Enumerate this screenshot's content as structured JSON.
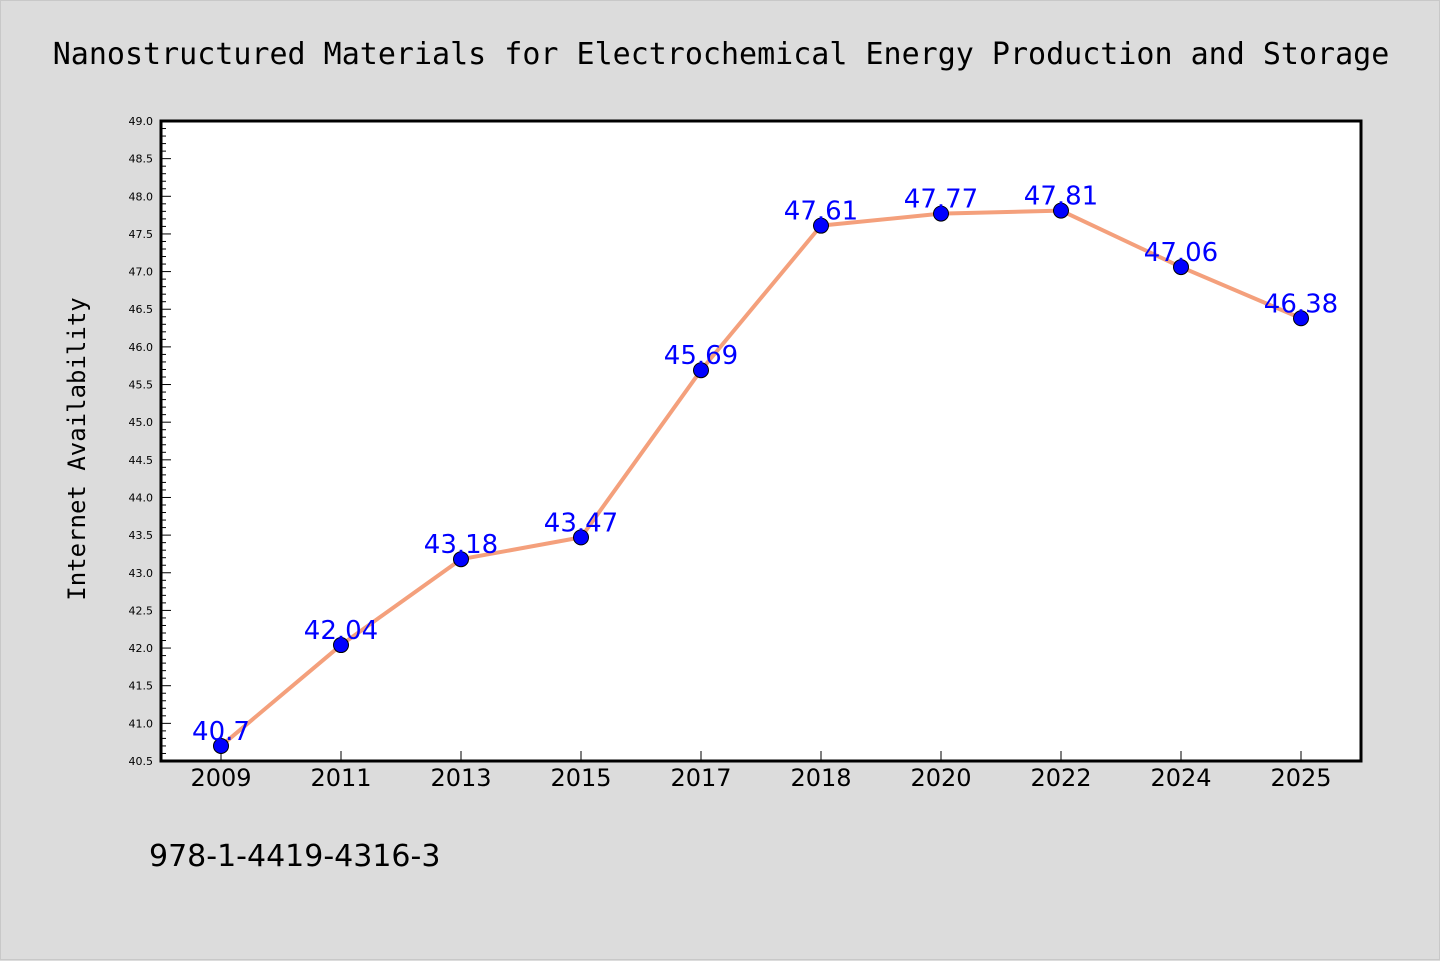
{
  "chart_data": {
    "type": "line",
    "title": "Nanostructured Materials for Electrochemical Energy Production and Storage",
    "xlabel": "",
    "ylabel": "Internet Availability",
    "categories": [
      "2009",
      "2011",
      "2013",
      "2015",
      "2017",
      "2018",
      "2020",
      "2022",
      "2024",
      "2025"
    ],
    "series": [
      {
        "values": [
          40.7,
          42.04,
          43.18,
          43.47,
          45.69,
          47.61,
          47.77,
          47.81,
          47.06,
          46.38
        ],
        "labels": [
          "40.7",
          "42.04",
          "43.18",
          "43.47",
          "45.69",
          "47.61",
          "47.77",
          "47.81",
          "47.06",
          "46.38"
        ]
      }
    ],
    "ylim": [
      40.5,
      49.0
    ],
    "y_major_ticks": [
      "40.5",
      "41.0",
      "41.5",
      "42.0",
      "42.5",
      "43.0",
      "43.5",
      "44.0",
      "44.5",
      "45.0",
      "45.5",
      "46.0",
      "46.5",
      "47.0",
      "47.5",
      "48.0",
      "48.5",
      "49.0"
    ],
    "grid": false,
    "legend": "none",
    "line_color": "#f4a07c",
    "marker_color": "#0000ff",
    "label_color": "#0000ff",
    "plot_background": "#ffffff",
    "figure_background": "#dcdcdc"
  },
  "footer": {
    "isbn": "978-1-4419-4316-3"
  }
}
